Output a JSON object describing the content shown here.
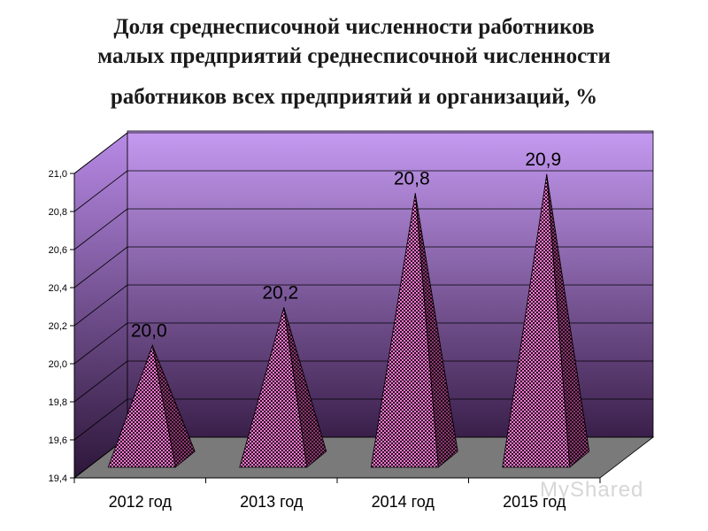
{
  "title": {
    "line1": "Доля среднесписочной численности работников",
    "line2": "малых предприятий среднесписочной численности",
    "line3": "работников  всех предприятий и организаций, %"
  },
  "watermark": "MyShared",
  "colors": {
    "wall_top": "#c59af2",
    "wall_bottom": "#3a1f4a",
    "floor": "#7a7a7a",
    "pyramid_pink": "#e870c8",
    "pyramid_dark": "#4a1a3a"
  },
  "chart_data": {
    "type": "bar",
    "bar_shape": "pyramid-3d",
    "categories": [
      "2012 год",
      "2013 год",
      "2014 год",
      "2015 год"
    ],
    "values": [
      20.0,
      20.2,
      20.8,
      20.9
    ],
    "value_labels": [
      "20,0",
      "20,2",
      "20,8",
      "20,9"
    ],
    "ylim": [
      19.4,
      21.0
    ],
    "yticks": [
      19.4,
      19.6,
      19.8,
      20.0,
      20.2,
      20.4,
      20.6,
      20.8,
      21.0
    ],
    "ytick_labels": [
      "19,4",
      "19,6",
      "19,8",
      "20,0",
      "20,2",
      "20,4",
      "20,6",
      "20,8",
      "21,0"
    ],
    "grid": true,
    "legend": "none",
    "xlabel": "",
    "ylabel": ""
  }
}
